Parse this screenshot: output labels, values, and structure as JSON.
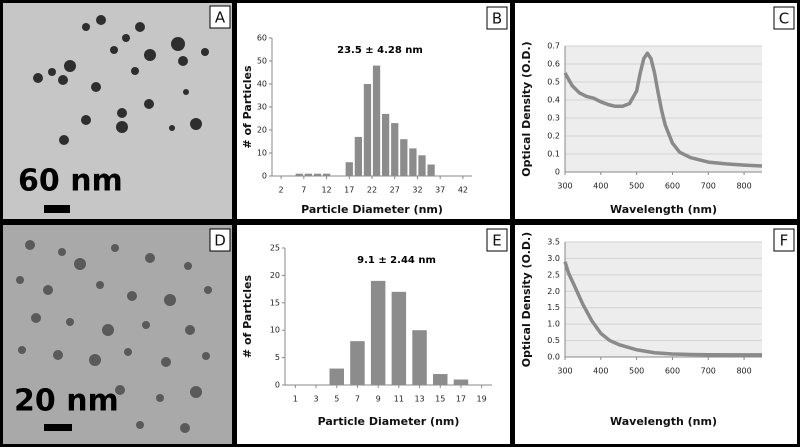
{
  "images": [
    {
      "panel": "A",
      "scale_label": "60 nm"
    },
    {
      "panel": "D",
      "scale_label": "20 nm"
    }
  ],
  "chart_data": [
    {
      "type": "bar",
      "panel": "B",
      "title": "23.5 ± 4.28 nm",
      "xlabel": "Particle Diameter (nm)",
      "ylabel": "# of Particles",
      "color": "#8c8c8c",
      "x": [
        6,
        8,
        10,
        12,
        17,
        19,
        21,
        23,
        25,
        27,
        29,
        31,
        33,
        35
      ],
      "values": [
        1,
        1,
        1,
        1,
        6,
        17,
        40,
        48,
        27,
        23,
        16,
        12,
        9,
        5
      ],
      "xlim": [
        0,
        44
      ],
      "xticks": [
        2,
        7,
        12,
        17,
        22,
        27,
        32,
        37,
        42
      ],
      "ylim": [
        0,
        60
      ],
      "yticks": [
        0,
        10,
        20,
        30,
        40,
        50,
        60
      ],
      "grid": false
    },
    {
      "type": "line",
      "panel": "C",
      "xlabel": "Wavelength (nm)",
      "ylabel": "Optical Density (O.D.)",
      "color": "#8a8a8a",
      "plot_background": "#ededed",
      "x": [
        300,
        320,
        340,
        360,
        380,
        400,
        420,
        440,
        460,
        480,
        500,
        510,
        520,
        530,
        540,
        550,
        560,
        570,
        580,
        600,
        620,
        650,
        700,
        750,
        800,
        850
      ],
      "values": [
        0.55,
        0.48,
        0.44,
        0.42,
        0.41,
        0.39,
        0.375,
        0.365,
        0.365,
        0.38,
        0.45,
        0.55,
        0.63,
        0.66,
        0.63,
        0.55,
        0.44,
        0.34,
        0.26,
        0.16,
        0.11,
        0.08,
        0.055,
        0.045,
        0.038,
        0.033
      ],
      "xlim": [
        300,
        850
      ],
      "xticks": [
        300,
        400,
        500,
        600,
        700,
        800
      ],
      "ylim": [
        0,
        0.7
      ],
      "yticks": [
        0,
        0.1,
        0.2,
        0.3,
        0.4,
        0.5,
        0.6,
        0.7
      ],
      "grid": true
    },
    {
      "type": "bar",
      "panel": "E",
      "title": "9.1 ± 2.44 nm",
      "xlabel": "Particle Diameter (nm)",
      "ylabel": "# of Particles",
      "color": "#8c8c8c",
      "x": [
        5,
        7,
        9,
        11,
        13,
        15,
        17
      ],
      "values": [
        3,
        8,
        19,
        17,
        10,
        2,
        1
      ],
      "xlim": [
        0,
        20
      ],
      "xticks": [
        1,
        3,
        5,
        7,
        9,
        11,
        13,
        15,
        17,
        19
      ],
      "ylim": [
        0,
        25
      ],
      "yticks": [
        0,
        5,
        10,
        15,
        20,
        25
      ],
      "grid": false
    },
    {
      "type": "line",
      "panel": "F",
      "xlabel": "Wavelength (nm)",
      "ylabel": "Optical Density (O.D.)",
      "color": "#8a8a8a",
      "plot_background": "#ededed",
      "x": [
        300,
        310,
        325,
        350,
        375,
        400,
        425,
        450,
        475,
        500,
        550,
        600,
        650,
        700,
        800,
        850
      ],
      "values": [
        2.9,
        2.55,
        2.2,
        1.6,
        1.1,
        0.72,
        0.5,
        0.38,
        0.3,
        0.22,
        0.13,
        0.09,
        0.075,
        0.07,
        0.065,
        0.065
      ],
      "xlim": [
        300,
        850
      ],
      "xticks": [
        300,
        400,
        500,
        600,
        700,
        800
      ],
      "ylim": [
        0,
        3.5
      ],
      "yticks": [
        {
          "value": 0,
          "label": "0.0"
        },
        0.5,
        {
          "value": 1,
          "label": "1.0"
        },
        1.5,
        {
          "value": 2,
          "label": "2.0"
        },
        2.5,
        {
          "value": 3,
          "label": "3.0"
        },
        3.5
      ],
      "grid": true
    }
  ]
}
